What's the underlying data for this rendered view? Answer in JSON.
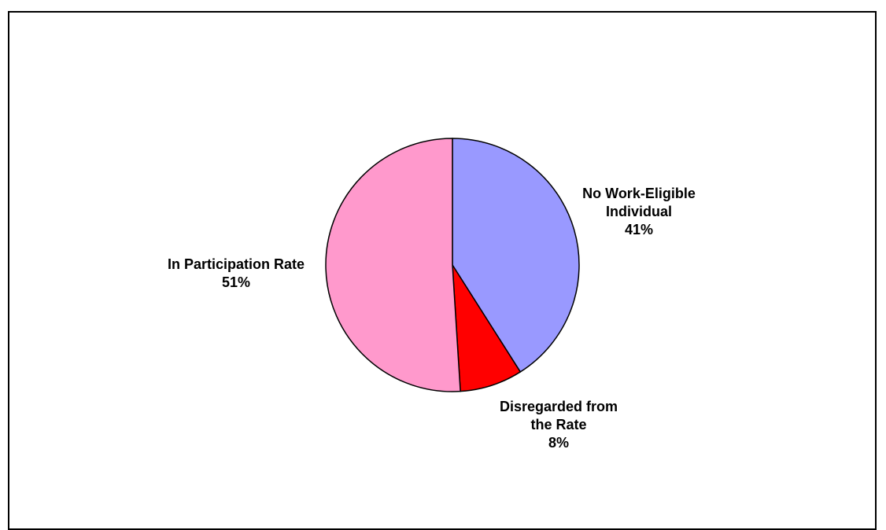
{
  "chart_data": {
    "type": "pie",
    "title": "",
    "slices": [
      {
        "label_lines": [
          "No Work-Eligible",
          "Individual"
        ],
        "percent_label": "41%",
        "value": 41,
        "color": "#9999ff"
      },
      {
        "label_lines": [
          "Disregarded from",
          "the Rate"
        ],
        "percent_label": "8%",
        "value": 8,
        "color": "#ff0000"
      },
      {
        "label_lines": [
          "In Participation Rate"
        ],
        "percent_label": "51%",
        "value": 51,
        "color": "#ff99cc"
      }
    ],
    "start": "12 o'clock",
    "direction": "clockwise",
    "legend": "none"
  }
}
